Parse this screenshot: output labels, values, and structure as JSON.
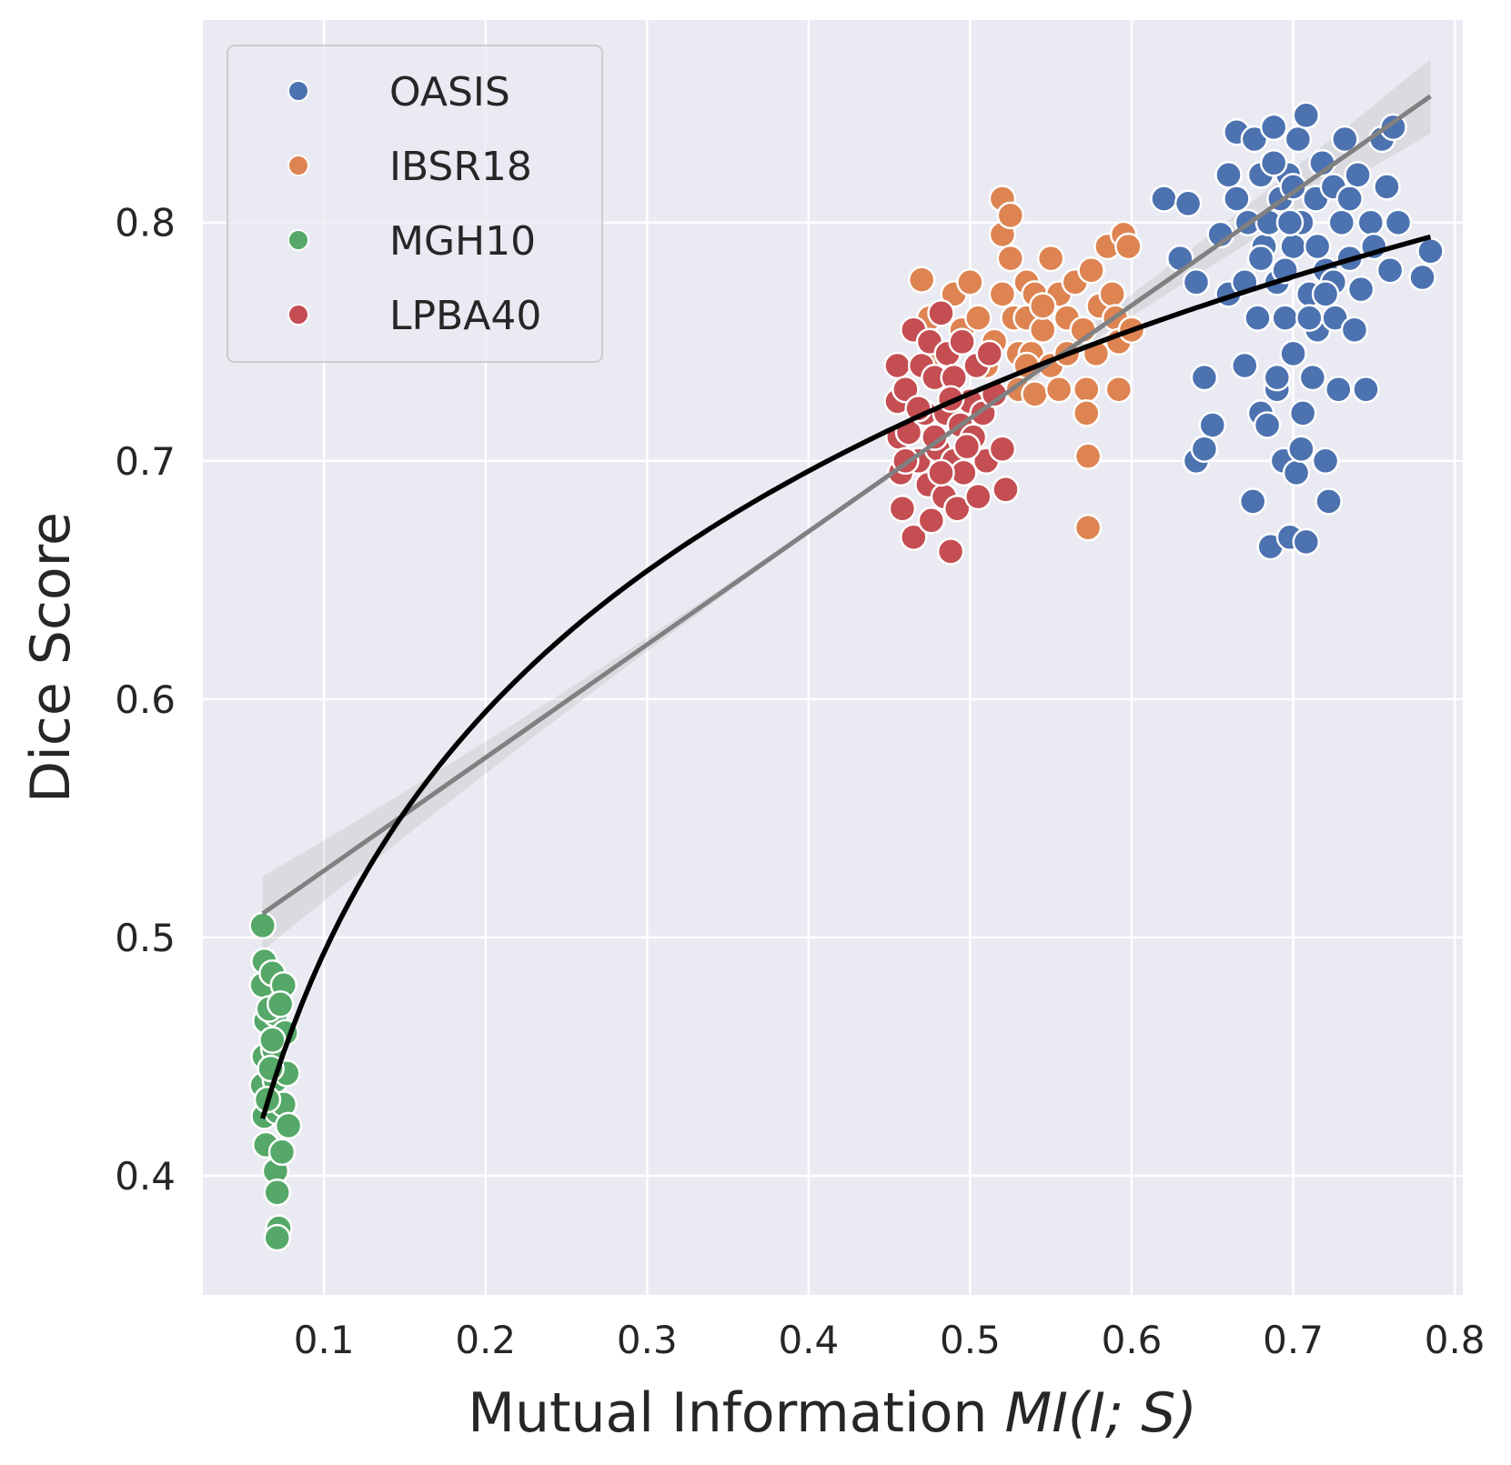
{
  "chart_data": {
    "type": "scatter",
    "title": "",
    "xlabel_prefix": "Mutual Information ",
    "xlabel_math": "MI(I; S)",
    "ylabel": "Dice Score",
    "xlim": [
      0.025,
      0.805
    ],
    "ylim": [
      0.35,
      0.885
    ],
    "xticks": [
      0.1,
      0.2,
      0.3,
      0.4,
      0.5,
      0.6,
      0.7,
      0.8
    ],
    "xtick_labels": [
      "0.1",
      "0.2",
      "0.3",
      "0.4",
      "0.5",
      "0.6",
      "0.7",
      "0.8"
    ],
    "yticks": [
      0.4,
      0.5,
      0.6,
      0.7,
      0.8
    ],
    "ytick_labels": [
      "0.4",
      "0.5",
      "0.6",
      "0.7",
      "0.8"
    ],
    "grid": true,
    "legend_position": "top-left",
    "colors": {
      "background": "#eaeaf2",
      "grid": "#ffffff",
      "OASIS": "#4c72b0",
      "IBSR18": "#dd8452",
      "MGH10": "#55a868",
      "LPBA40": "#c44e52",
      "linear_fit": "#808080",
      "log_fit": "#000000"
    },
    "series": [
      {
        "name": "OASIS",
        "color": "#4c72b0",
        "points": [
          [
            0.62,
            0.81
          ],
          [
            0.63,
            0.785
          ],
          [
            0.635,
            0.808
          ],
          [
            0.64,
            0.775
          ],
          [
            0.645,
            0.735
          ],
          [
            0.65,
            0.715
          ],
          [
            0.64,
            0.7
          ],
          [
            0.645,
            0.705
          ],
          [
            0.655,
            0.795
          ],
          [
            0.66,
            0.82
          ],
          [
            0.66,
            0.77
          ],
          [
            0.665,
            0.81
          ],
          [
            0.665,
            0.838
          ],
          [
            0.67,
            0.74
          ],
          [
            0.67,
            0.775
          ],
          [
            0.672,
            0.8
          ],
          [
            0.675,
            0.683
          ],
          [
            0.676,
            0.835
          ],
          [
            0.678,
            0.76
          ],
          [
            0.68,
            0.82
          ],
          [
            0.68,
            0.72
          ],
          [
            0.682,
            0.79
          ],
          [
            0.684,
            0.715
          ],
          [
            0.685,
            0.8
          ],
          [
            0.686,
            0.664
          ],
          [
            0.688,
            0.84
          ],
          [
            0.69,
            0.775
          ],
          [
            0.69,
            0.73
          ],
          [
            0.692,
            0.81
          ],
          [
            0.694,
            0.7
          ],
          [
            0.695,
            0.76
          ],
          [
            0.697,
            0.82
          ],
          [
            0.698,
            0.668
          ],
          [
            0.7,
            0.745
          ],
          [
            0.7,
            0.79
          ],
          [
            0.702,
            0.695
          ],
          [
            0.703,
            0.835
          ],
          [
            0.705,
            0.8
          ],
          [
            0.706,
            0.72
          ],
          [
            0.708,
            0.845
          ],
          [
            0.708,
            0.666
          ],
          [
            0.71,
            0.77
          ],
          [
            0.712,
            0.735
          ],
          [
            0.714,
            0.81
          ],
          [
            0.715,
            0.755
          ],
          [
            0.718,
            0.825
          ],
          [
            0.72,
            0.7
          ],
          [
            0.72,
            0.78
          ],
          [
            0.722,
            0.683
          ],
          [
            0.725,
            0.815
          ],
          [
            0.726,
            0.76
          ],
          [
            0.728,
            0.73
          ],
          [
            0.73,
            0.8
          ],
          [
            0.732,
            0.835
          ],
          [
            0.735,
            0.785
          ],
          [
            0.738,
            0.755
          ],
          [
            0.74,
            0.82
          ],
          [
            0.742,
            0.772
          ],
          [
            0.745,
            0.73
          ],
          [
            0.748,
            0.8
          ],
          [
            0.75,
            0.79
          ],
          [
            0.755,
            0.835
          ],
          [
            0.758,
            0.815
          ],
          [
            0.76,
            0.78
          ],
          [
            0.762,
            0.84
          ],
          [
            0.765,
            0.8
          ],
          [
            0.78,
            0.777
          ],
          [
            0.785,
            0.788
          ],
          [
            0.69,
            0.735
          ],
          [
            0.705,
            0.705
          ],
          [
            0.695,
            0.78
          ],
          [
            0.715,
            0.79
          ],
          [
            0.7,
            0.815
          ],
          [
            0.725,
            0.775
          ],
          [
            0.68,
            0.785
          ],
          [
            0.71,
            0.76
          ],
          [
            0.735,
            0.81
          ],
          [
            0.688,
            0.825
          ],
          [
            0.698,
            0.8
          ],
          [
            0.72,
            0.77
          ]
        ]
      },
      {
        "name": "IBSR18",
        "color": "#dd8452",
        "points": [
          [
            0.47,
            0.776
          ],
          [
            0.475,
            0.76
          ],
          [
            0.48,
            0.745
          ],
          [
            0.49,
            0.77
          ],
          [
            0.495,
            0.755
          ],
          [
            0.5,
            0.775
          ],
          [
            0.505,
            0.76
          ],
          [
            0.51,
            0.74
          ],
          [
            0.515,
            0.75
          ],
          [
            0.52,
            0.81
          ],
          [
            0.52,
            0.795
          ],
          [
            0.52,
            0.77
          ],
          [
            0.525,
            0.803
          ],
          [
            0.525,
            0.785
          ],
          [
            0.527,
            0.76
          ],
          [
            0.53,
            0.745
          ],
          [
            0.53,
            0.73
          ],
          [
            0.535,
            0.775
          ],
          [
            0.535,
            0.76
          ],
          [
            0.538,
            0.745
          ],
          [
            0.54,
            0.77
          ],
          [
            0.54,
            0.728
          ],
          [
            0.545,
            0.755
          ],
          [
            0.55,
            0.785
          ],
          [
            0.55,
            0.74
          ],
          [
            0.555,
            0.77
          ],
          [
            0.555,
            0.73
          ],
          [
            0.56,
            0.76
          ],
          [
            0.565,
            0.775
          ],
          [
            0.57,
            0.755
          ],
          [
            0.572,
            0.73
          ],
          [
            0.572,
            0.72
          ],
          [
            0.573,
            0.702
          ],
          [
            0.573,
            0.672
          ],
          [
            0.575,
            0.78
          ],
          [
            0.578,
            0.745
          ],
          [
            0.58,
            0.765
          ],
          [
            0.585,
            0.79
          ],
          [
            0.588,
            0.77
          ],
          [
            0.59,
            0.76
          ],
          [
            0.592,
            0.73
          ],
          [
            0.592,
            0.75
          ],
          [
            0.595,
            0.795
          ],
          [
            0.598,
            0.79
          ],
          [
            0.6,
            0.755
          ],
          [
            0.535,
            0.74
          ],
          [
            0.56,
            0.745
          ],
          [
            0.545,
            0.765
          ]
        ]
      },
      {
        "name": "MGH10",
        "color": "#55a868",
        "points": [
          [
            0.062,
            0.505
          ],
          [
            0.063,
            0.49
          ],
          [
            0.062,
            0.48
          ],
          [
            0.064,
            0.465
          ],
          [
            0.063,
            0.45
          ],
          [
            0.062,
            0.438
          ],
          [
            0.063,
            0.425
          ],
          [
            0.064,
            0.413
          ],
          [
            0.068,
            0.485
          ],
          [
            0.07,
            0.468
          ],
          [
            0.069,
            0.453
          ],
          [
            0.07,
            0.44
          ],
          [
            0.071,
            0.427
          ],
          [
            0.07,
            0.402
          ],
          [
            0.071,
            0.393
          ],
          [
            0.072,
            0.378
          ],
          [
            0.071,
            0.374
          ],
          [
            0.075,
            0.48
          ],
          [
            0.076,
            0.46
          ],
          [
            0.077,
            0.443
          ],
          [
            0.075,
            0.43
          ],
          [
            0.078,
            0.421
          ],
          [
            0.074,
            0.41
          ],
          [
            0.066,
            0.47
          ],
          [
            0.067,
            0.445
          ],
          [
            0.065,
            0.432
          ],
          [
            0.073,
            0.472
          ],
          [
            0.068,
            0.457
          ]
        ]
      },
      {
        "name": "LPBA40",
        "color": "#c44e52",
        "points": [
          [
            0.455,
            0.74
          ],
          [
            0.455,
            0.725
          ],
          [
            0.456,
            0.71
          ],
          [
            0.457,
            0.695
          ],
          [
            0.458,
            0.68
          ],
          [
            0.46,
            0.73
          ],
          [
            0.462,
            0.712
          ],
          [
            0.465,
            0.755
          ],
          [
            0.465,
            0.668
          ],
          [
            0.468,
            0.7
          ],
          [
            0.47,
            0.74
          ],
          [
            0.472,
            0.72
          ],
          [
            0.474,
            0.69
          ],
          [
            0.475,
            0.75
          ],
          [
            0.476,
            0.675
          ],
          [
            0.478,
            0.735
          ],
          [
            0.48,
            0.705
          ],
          [
            0.482,
            0.762
          ],
          [
            0.484,
            0.685
          ],
          [
            0.485,
            0.72
          ],
          [
            0.486,
            0.745
          ],
          [
            0.488,
            0.662
          ],
          [
            0.49,
            0.7
          ],
          [
            0.49,
            0.735
          ],
          [
            0.492,
            0.68
          ],
          [
            0.494,
            0.715
          ],
          [
            0.495,
            0.75
          ],
          [
            0.496,
            0.695
          ],
          [
            0.5,
            0.725
          ],
          [
            0.502,
            0.71
          ],
          [
            0.504,
            0.74
          ],
          [
            0.505,
            0.685
          ],
          [
            0.508,
            0.72
          ],
          [
            0.51,
            0.7
          ],
          [
            0.512,
            0.745
          ],
          [
            0.515,
            0.728
          ],
          [
            0.52,
            0.705
          ],
          [
            0.522,
            0.688
          ],
          [
            0.478,
            0.71
          ],
          [
            0.488,
            0.726
          ],
          [
            0.468,
            0.722
          ],
          [
            0.498,
            0.706
          ],
          [
            0.46,
            0.7
          ],
          [
            0.482,
            0.695
          ]
        ]
      }
    ],
    "fits": [
      {
        "name": "linear_fit",
        "type": "linear",
        "x_range": [
          0.062,
          0.785
        ],
        "y_range": [
          0.51,
          0.853
        ],
        "color": "#808080"
      },
      {
        "name": "log_fit",
        "type": "log",
        "x_range": [
          0.062,
          0.785
        ],
        "y_range": [
          0.424,
          0.794
        ],
        "color": "#000000"
      }
    ]
  }
}
